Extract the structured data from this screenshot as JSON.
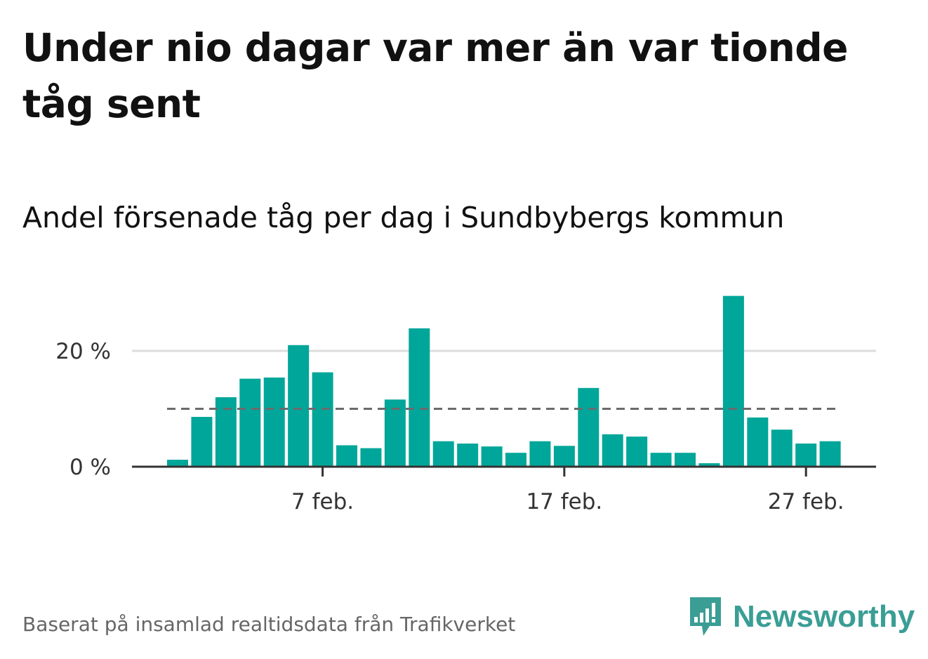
{
  "headline": "Under nio dagar var mer än var tionde tåg sent",
  "subtitle": "Andel försenade tåg per dag i Sundbybergs kommun",
  "source": "Baserat på insamlad realtidsdata från Trafikverket",
  "logo": {
    "text": "Newsworthy",
    "icon": "bar-chart-speech-bubble-icon"
  },
  "colors": {
    "bar": "#00a699",
    "reference_line": "#6b6b6e",
    "grid": "#dddddd",
    "axis": "#333333",
    "logo": "#3a9e95"
  },
  "chart_data": {
    "type": "bar",
    "title": "Andel försenade tåg per dag i Sundbybergs kommun",
    "xlabel": "",
    "ylabel": "",
    "days": [
      1,
      2,
      3,
      4,
      5,
      6,
      7,
      8,
      9,
      10,
      11,
      12,
      13,
      14,
      15,
      16,
      17,
      18,
      19,
      20,
      21,
      22,
      23,
      24,
      25,
      26,
      27,
      28
    ],
    "values": [
      1.2,
      8.6,
      12.0,
      15.2,
      15.4,
      21.0,
      16.3,
      3.7,
      3.2,
      11.6,
      23.9,
      4.4,
      4.0,
      3.5,
      2.4,
      4.4,
      3.6,
      13.6,
      5.6,
      5.2,
      2.4,
      2.4,
      0.6,
      29.5,
      8.5,
      6.4,
      4.0,
      4.4
    ],
    "reference_line": {
      "value": 10,
      "style": "dashed"
    },
    "x_ticks": [
      {
        "day": 7,
        "label": "7 feb."
      },
      {
        "day": 17,
        "label": "17 feb."
      },
      {
        "day": 27,
        "label": "27 feb."
      }
    ],
    "y_ticks": [
      {
        "value": 0,
        "label": "0 %"
      },
      {
        "value": 20,
        "label": "20 %"
      }
    ],
    "ylim": [
      0,
      30
    ],
    "grid": true,
    "legend": "none"
  }
}
